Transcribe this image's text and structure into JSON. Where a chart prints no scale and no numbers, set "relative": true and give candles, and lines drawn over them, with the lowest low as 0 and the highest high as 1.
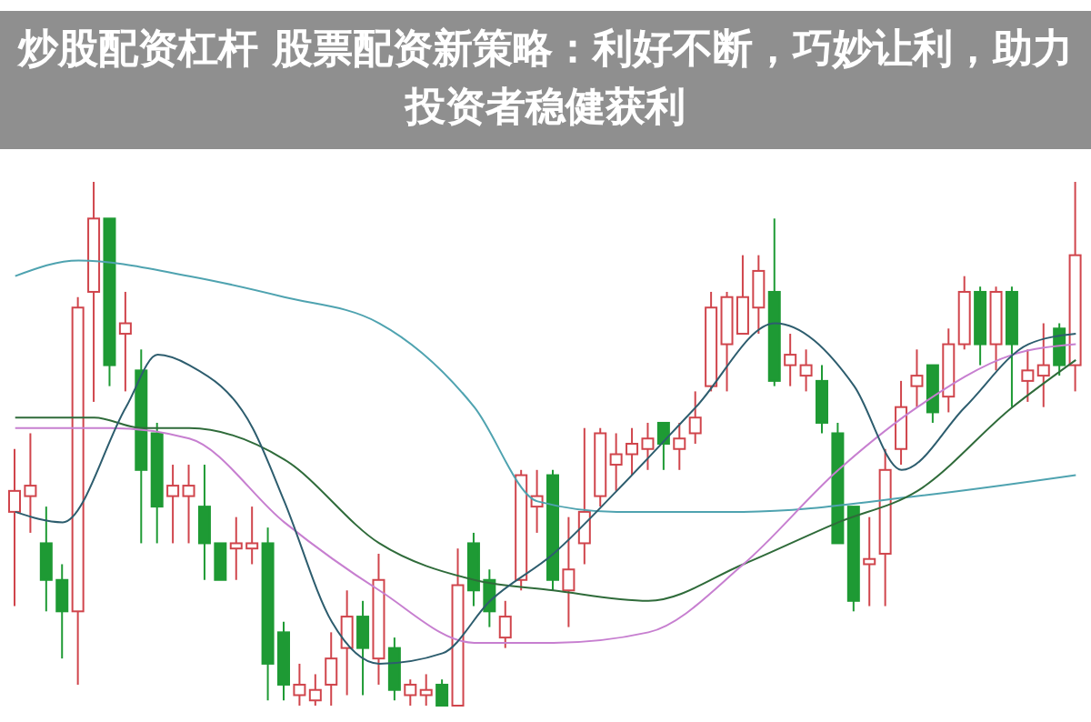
{
  "chart_data": {
    "type": "candlestick",
    "title": "炒股配资杠杆 股票配资新策略：利好不断，巧妙让利，助力投资者稳健获利",
    "relative": true,
    "tick_labels": false,
    "categories": [
      null,
      null,
      null,
      null,
      null,
      null,
      null,
      null,
      null,
      null,
      null,
      null,
      null,
      null,
      null,
      null,
      null,
      null,
      null,
      null,
      null,
      null,
      null,
      null,
      null,
      null,
      null,
      null,
      null,
      null,
      null,
      null,
      null,
      null,
      null,
      null,
      null,
      null,
      null,
      null,
      null,
      null,
      null,
      null,
      null,
      null,
      null,
      null,
      null,
      null,
      null,
      null,
      null,
      null,
      null,
      null,
      null,
      null,
      null,
      null,
      null,
      null,
      null,
      null,
      null,
      null,
      null,
      null
    ],
    "ohlc": [
      [
        0.37,
        0.49,
        0.19,
        0.41
      ],
      [
        0.4,
        0.52,
        0.33,
        0.42
      ],
      [
        0.31,
        0.38,
        0.18,
        0.24
      ],
      [
        0.24,
        0.27,
        0.09,
        0.18
      ],
      [
        0.18,
        0.78,
        0.04,
        0.76
      ],
      [
        0.79,
        1.0,
        0.58,
        0.93
      ],
      [
        0.93,
        0.93,
        0.61,
        0.65
      ],
      [
        0.71,
        0.79,
        0.6,
        0.73
      ],
      [
        0.64,
        0.68,
        0.31,
        0.45
      ],
      [
        0.52,
        0.54,
        0.31,
        0.38
      ],
      [
        0.4,
        0.46,
        0.31,
        0.42
      ],
      [
        0.4,
        0.46,
        0.31,
        0.42
      ],
      [
        0.38,
        0.46,
        0.24,
        0.31
      ],
      [
        0.31,
        0.31,
        0.24,
        0.24
      ],
      [
        0.3,
        0.36,
        0.24,
        0.31
      ],
      [
        0.3,
        0.38,
        0.27,
        0.31
      ],
      [
        0.31,
        0.34,
        0.01,
        0.08
      ],
      [
        0.14,
        0.16,
        0.01,
        0.04
      ],
      [
        0.02,
        0.08,
        0,
        0.04
      ],
      [
        0.01,
        0.06,
        0,
        0.03
      ],
      [
        0.04,
        0.14,
        0,
        0.09
      ],
      [
        0.11,
        0.22,
        0.02,
        0.17
      ],
      [
        0.17,
        0.2,
        0.02,
        0.11
      ],
      [
        0.09,
        0.29,
        0.04,
        0.24
      ],
      [
        0.11,
        0.13,
        0.01,
        0.03
      ],
      [
        0.02,
        0.05,
        0,
        0.04
      ],
      [
        0.02,
        0.06,
        0,
        0.03
      ],
      [
        0.04,
        0.05,
        0,
        0
      ],
      [
        0,
        0.3,
        0,
        0.23
      ],
      [
        0.31,
        0.33,
        0.19,
        0.22
      ],
      [
        0.24,
        0.26,
        0.15,
        0.18
      ],
      [
        0.13,
        0.2,
        0.11,
        0.17
      ],
      [
        0.24,
        0.45,
        0.22,
        0.44
      ],
      [
        0.38,
        0.45,
        0.33,
        0.4
      ],
      [
        0.44,
        0.45,
        0.22,
        0.24
      ],
      [
        0.22,
        0.36,
        0.15,
        0.26
      ],
      [
        0.31,
        0.53,
        0.27,
        0.37
      ],
      [
        0.4,
        0.53,
        0.38,
        0.52
      ],
      [
        0.46,
        0.52,
        0.41,
        0.48
      ],
      [
        0.48,
        0.53,
        0.44,
        0.5
      ],
      [
        0.49,
        0.54,
        0.45,
        0.51
      ],
      [
        0.54,
        0.54,
        0.45,
        0.5
      ],
      [
        0.49,
        0.54,
        0.45,
        0.51
      ],
      [
        0.52,
        0.6,
        0.5,
        0.55
      ],
      [
        0.61,
        0.79,
        0.6,
        0.76
      ],
      [
        0.69,
        0.79,
        0.6,
        0.78
      ],
      [
        0.71,
        0.86,
        0.71,
        0.78
      ],
      [
        0.76,
        0.86,
        0.71,
        0.83
      ],
      [
        0.79,
        0.93,
        0.61,
        0.62
      ],
      [
        0.65,
        0.71,
        0.61,
        0.67
      ],
      [
        0.63,
        0.68,
        0.6,
        0.65
      ],
      [
        0.62,
        0.65,
        0.52,
        0.54
      ],
      [
        0.52,
        0.54,
        0.31,
        0.31
      ],
      [
        0.38,
        0.38,
        0.18,
        0.2
      ],
      [
        0.27,
        0.36,
        0.19,
        0.28
      ],
      [
        0.29,
        0.49,
        0.19,
        0.45
      ],
      [
        0.49,
        0.62,
        0.46,
        0.57
      ],
      [
        0.61,
        0.68,
        0.57,
        0.63
      ],
      [
        0.65,
        0.65,
        0.54,
        0.56
      ],
      [
        0.59,
        0.72,
        0.56,
        0.69
      ],
      [
        0.69,
        0.82,
        0.68,
        0.79
      ],
      [
        0.79,
        0.8,
        0.65,
        0.69
      ],
      [
        0.69,
        0.8,
        0.64,
        0.79
      ],
      [
        0.79,
        0.8,
        0.57,
        0.69
      ],
      [
        0.62,
        0.68,
        0.58,
        0.64
      ],
      [
        0.63,
        0.73,
        0.57,
        0.65
      ],
      [
        0.72,
        0.73,
        0.63,
        0.65
      ],
      [
        0.65,
        1.0,
        0.6,
        0.86
      ]
    ],
    "series": [
      {
        "type": "line",
        "color": "#4fa3b0",
        "values": [
          0.82,
          null,
          null,
          null,
          0.85,
          null,
          null,
          null,
          null,
          null,
          null,
          0.82,
          null,
          null,
          null,
          null,
          null,
          0.78,
          null,
          null,
          null,
          null,
          null,
          0.73,
          null,
          null,
          null,
          null,
          null,
          0.57,
          null,
          null,
          null,
          0.39,
          null,
          null,
          null,
          null,
          0.37,
          null,
          null,
          null,
          null,
          null,
          null,
          null,
          0.37,
          null,
          null,
          null,
          null,
          null,
          null,
          null,
          null,
          null,
          null,
          0.4,
          null,
          null,
          null,
          null,
          null,
          null,
          null,
          null,
          null,
          0.44
        ]
      },
      {
        "type": "line",
        "color": "#2f6b3a",
        "values": [
          0.55,
          null,
          null,
          null,
          null,
          0.55,
          null,
          null,
          0.53,
          null,
          null,
          0.53,
          null,
          null,
          null,
          null,
          null,
          0.47,
          null,
          null,
          null,
          null,
          null,
          0.31,
          null,
          null,
          null,
          null,
          null,
          0.24,
          null,
          null,
          null,
          null,
          0.22,
          null,
          null,
          null,
          null,
          null,
          0.2,
          null,
          null,
          null,
          null,
          null,
          0.27,
          null,
          null,
          null,
          null,
          null,
          0.35,
          null,
          null,
          null,
          null,
          0.41,
          null,
          null,
          null,
          null,
          null,
          0.57,
          null,
          null,
          null,
          0.66
        ]
      },
      {
        "type": "line",
        "color": "#c77fd0",
        "values": [
          0.53,
          null,
          null,
          null,
          null,
          null,
          0.53,
          null,
          null,
          null,
          null,
          0.51,
          null,
          null,
          null,
          null,
          null,
          0.35,
          null,
          null,
          null,
          null,
          null,
          0.22,
          null,
          null,
          null,
          null,
          null,
          0.12,
          null,
          null,
          null,
          null,
          0.12,
          null,
          null,
          null,
          null,
          null,
          0.14,
          null,
          null,
          null,
          null,
          null,
          0.27,
          null,
          null,
          null,
          null,
          null,
          0.45,
          null,
          null,
          null,
          null,
          0.57,
          null,
          null,
          null,
          null,
          null,
          0.67,
          null,
          null,
          null,
          0.69
        ]
      },
      {
        "type": "line",
        "color": "#2d5d6e",
        "values": [
          0.37,
          null,
          null,
          0.35,
          null,
          null,
          null,
          0.57,
          null,
          0.67,
          null,
          0.65,
          null,
          null,
          null,
          0.53,
          null,
          0.39,
          null,
          null,
          0.16,
          null,
          null,
          0.08,
          null,
          null,
          null,
          0.1,
          null,
          null,
          0.2,
          null,
          null,
          null,
          0.29,
          null,
          null,
          null,
          0.41,
          null,
          null,
          null,
          null,
          0.57,
          null,
          null,
          null,
          null,
          0.73,
          null,
          null,
          null,
          null,
          0.61,
          null,
          null,
          0.45,
          null,
          null,
          null,
          0.57,
          null,
          null,
          null,
          0.69,
          null,
          null,
          0.71
        ]
      }
    ]
  }
}
